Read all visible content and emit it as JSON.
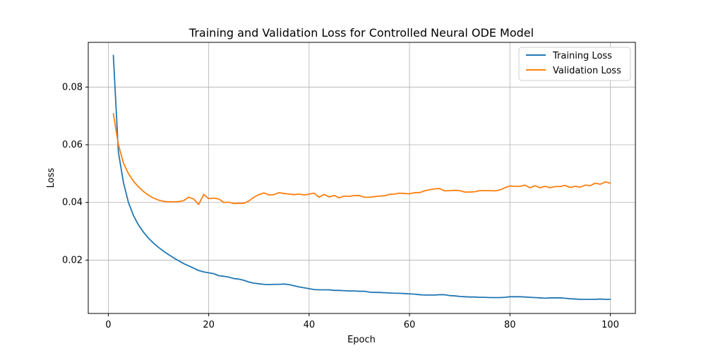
{
  "chart_data": {
    "type": "line",
    "title": "Training and Validation Loss for Controlled Neural ODE Model",
    "xlabel": "Epoch",
    "ylabel": "Loss",
    "xlim": [
      -4,
      105
    ],
    "ylim": [
      0.0015,
      0.0955
    ],
    "xticks": [
      0,
      20,
      40,
      60,
      80,
      100
    ],
    "yticks": [
      0.02,
      0.04,
      0.06,
      0.08
    ],
    "xtick_labels": [
      "0",
      "20",
      "40",
      "60",
      "80",
      "100"
    ],
    "ytick_labels": [
      "0.02",
      "0.04",
      "0.06",
      "0.08"
    ],
    "grid": true,
    "legend_position": "top-right",
    "x": [
      1,
      2,
      3,
      4,
      5,
      6,
      7,
      8,
      9,
      10,
      11,
      12,
      13,
      14,
      15,
      16,
      17,
      18,
      19,
      20,
      21,
      22,
      23,
      24,
      25,
      26,
      27,
      28,
      29,
      30,
      31,
      32,
      33,
      34,
      35,
      36,
      37,
      38,
      39,
      40,
      41,
      42,
      43,
      44,
      45,
      46,
      47,
      48,
      49,
      50,
      51,
      52,
      53,
      54,
      55,
      56,
      57,
      58,
      59,
      60,
      61,
      62,
      63,
      64,
      65,
      66,
      67,
      68,
      69,
      70,
      71,
      72,
      73,
      74,
      75,
      76,
      77,
      78,
      79,
      80,
      81,
      82,
      83,
      84,
      85,
      86,
      87,
      88,
      89,
      90,
      91,
      92,
      93,
      94,
      95,
      96,
      97,
      98,
      99,
      100
    ],
    "series": [
      {
        "name": "Training Loss",
        "color": "#1f77b4",
        "values": [
          0.091,
          0.0575,
          0.047,
          0.04,
          0.0355,
          0.0322,
          0.0297,
          0.0276,
          0.0259,
          0.0244,
          0.0231,
          0.0219,
          0.0208,
          0.0198,
          0.0188,
          0.018,
          0.0172,
          0.0164,
          0.0159,
          0.0156,
          0.0153,
          0.0146,
          0.0144,
          0.0141,
          0.0136,
          0.0134,
          0.013,
          0.0124,
          0.012,
          0.0118,
          0.0116,
          0.0115,
          0.0116,
          0.0116,
          0.0117,
          0.0115,
          0.0111,
          0.0107,
          0.0104,
          0.0101,
          0.0098,
          0.0097,
          0.0097,
          0.0097,
          0.0095,
          0.0095,
          0.0094,
          0.0093,
          0.0093,
          0.0092,
          0.0092,
          0.0089,
          0.0088,
          0.0088,
          0.0087,
          0.0086,
          0.0085,
          0.0085,
          0.0084,
          0.0083,
          0.0082,
          0.008,
          0.0079,
          0.0079,
          0.0079,
          0.008,
          0.008,
          0.0077,
          0.0076,
          0.0074,
          0.0073,
          0.0072,
          0.0072,
          0.0071,
          0.0071,
          0.007,
          0.007,
          0.007,
          0.0071,
          0.0073,
          0.0073,
          0.0073,
          0.0072,
          0.0071,
          0.007,
          0.0069,
          0.0068,
          0.0069,
          0.0069,
          0.0069,
          0.0068,
          0.0066,
          0.0065,
          0.0064,
          0.0064,
          0.0064,
          0.0064,
          0.0065,
          0.0064,
          0.0064
        ]
      },
      {
        "name": "Validation Loss",
        "color": "#ff7f0e",
        "values": [
          0.0708,
          0.0601,
          0.0537,
          0.05,
          0.0474,
          0.0454,
          0.0438,
          0.0425,
          0.0415,
          0.0408,
          0.0404,
          0.0402,
          0.0402,
          0.0403,
          0.0406,
          0.0418,
          0.0412,
          0.0393,
          0.0428,
          0.0413,
          0.0415,
          0.0412,
          0.04,
          0.0401,
          0.0396,
          0.0397,
          0.0397,
          0.0405,
          0.0418,
          0.0427,
          0.0433,
          0.0426,
          0.0427,
          0.0434,
          0.0431,
          0.0429,
          0.0427,
          0.0429,
          0.0426,
          0.0429,
          0.0432,
          0.0418,
          0.0428,
          0.0419,
          0.0424,
          0.0416,
          0.0422,
          0.0421,
          0.0424,
          0.0424,
          0.0418,
          0.0418,
          0.042,
          0.0422,
          0.0423,
          0.0428,
          0.0429,
          0.0432,
          0.0431,
          0.043,
          0.0434,
          0.0434,
          0.044,
          0.0444,
          0.0447,
          0.0448,
          0.044,
          0.0441,
          0.0442,
          0.0441,
          0.0436,
          0.0436,
          0.0437,
          0.0441,
          0.0441,
          0.0441,
          0.044,
          0.0443,
          0.0451,
          0.0457,
          0.0456,
          0.0456,
          0.046,
          0.0451,
          0.0458,
          0.0451,
          0.0456,
          0.0451,
          0.0455,
          0.0455,
          0.0459,
          0.0452,
          0.0456,
          0.0453,
          0.046,
          0.0458,
          0.0467,
          0.0463,
          0.0471,
          0.0467
        ]
      }
    ]
  }
}
